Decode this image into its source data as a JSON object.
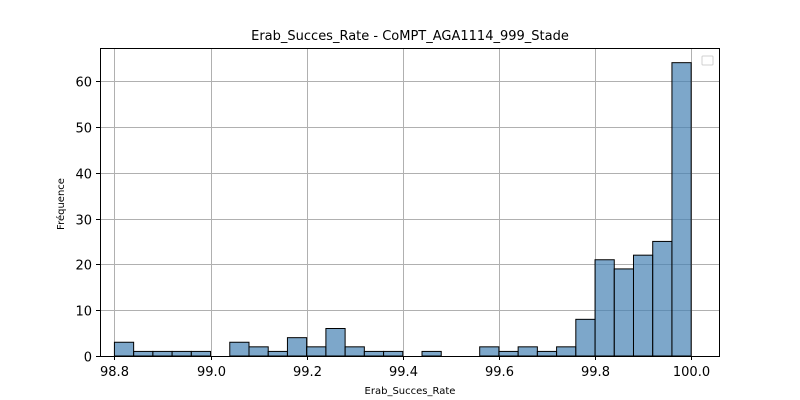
{
  "chart_data": {
    "type": "bar",
    "title": "Erab_Succes_Rate - CoMPT_AGA1114_999_Stade",
    "xlabel": "Erab_Succes_Rate",
    "ylabel": "Fréquence",
    "bin_width": 0.04,
    "xlim": [
      98.77,
      100.06
    ],
    "ylim": [
      0,
      67.2
    ],
    "xticks": [
      98.8,
      99.0,
      99.2,
      99.4,
      99.6,
      99.8,
      100.0
    ],
    "xtick_labels": [
      "98.8",
      "99.0",
      "99.2",
      "99.4",
      "99.6",
      "99.8",
      "100.0"
    ],
    "yticks": [
      0,
      10,
      20,
      30,
      40,
      50,
      60
    ],
    "ytick_labels": [
      "0",
      "10",
      "20",
      "30",
      "40",
      "50",
      "60"
    ],
    "grid": true,
    "legend": "top-right",
    "color": "#4682b4",
    "bins": [
      {
        "x": 98.8,
        "count": 3
      },
      {
        "x": 98.84,
        "count": 1
      },
      {
        "x": 98.88,
        "count": 1
      },
      {
        "x": 98.92,
        "count": 1
      },
      {
        "x": 98.96,
        "count": 1
      },
      {
        "x": 99.0,
        "count": 0
      },
      {
        "x": 99.04,
        "count": 3
      },
      {
        "x": 99.08,
        "count": 2
      },
      {
        "x": 99.12,
        "count": 1
      },
      {
        "x": 99.16,
        "count": 4
      },
      {
        "x": 99.2,
        "count": 2
      },
      {
        "x": 99.24,
        "count": 6
      },
      {
        "x": 99.28,
        "count": 2
      },
      {
        "x": 99.32,
        "count": 1
      },
      {
        "x": 99.36,
        "count": 1
      },
      {
        "x": 99.4,
        "count": 0
      },
      {
        "x": 99.44,
        "count": 1
      },
      {
        "x": 99.48,
        "count": 0
      },
      {
        "x": 99.52,
        "count": 0
      },
      {
        "x": 99.56,
        "count": 2
      },
      {
        "x": 99.6,
        "count": 1
      },
      {
        "x": 99.64,
        "count": 2
      },
      {
        "x": 99.68,
        "count": 1
      },
      {
        "x": 99.72,
        "count": 2
      },
      {
        "x": 99.76,
        "count": 8
      },
      {
        "x": 99.8,
        "count": 21
      },
      {
        "x": 99.84,
        "count": 19
      },
      {
        "x": 99.88,
        "count": 22
      },
      {
        "x": 99.92,
        "count": 25
      },
      {
        "x": 99.96,
        "count": 64
      }
    ]
  }
}
